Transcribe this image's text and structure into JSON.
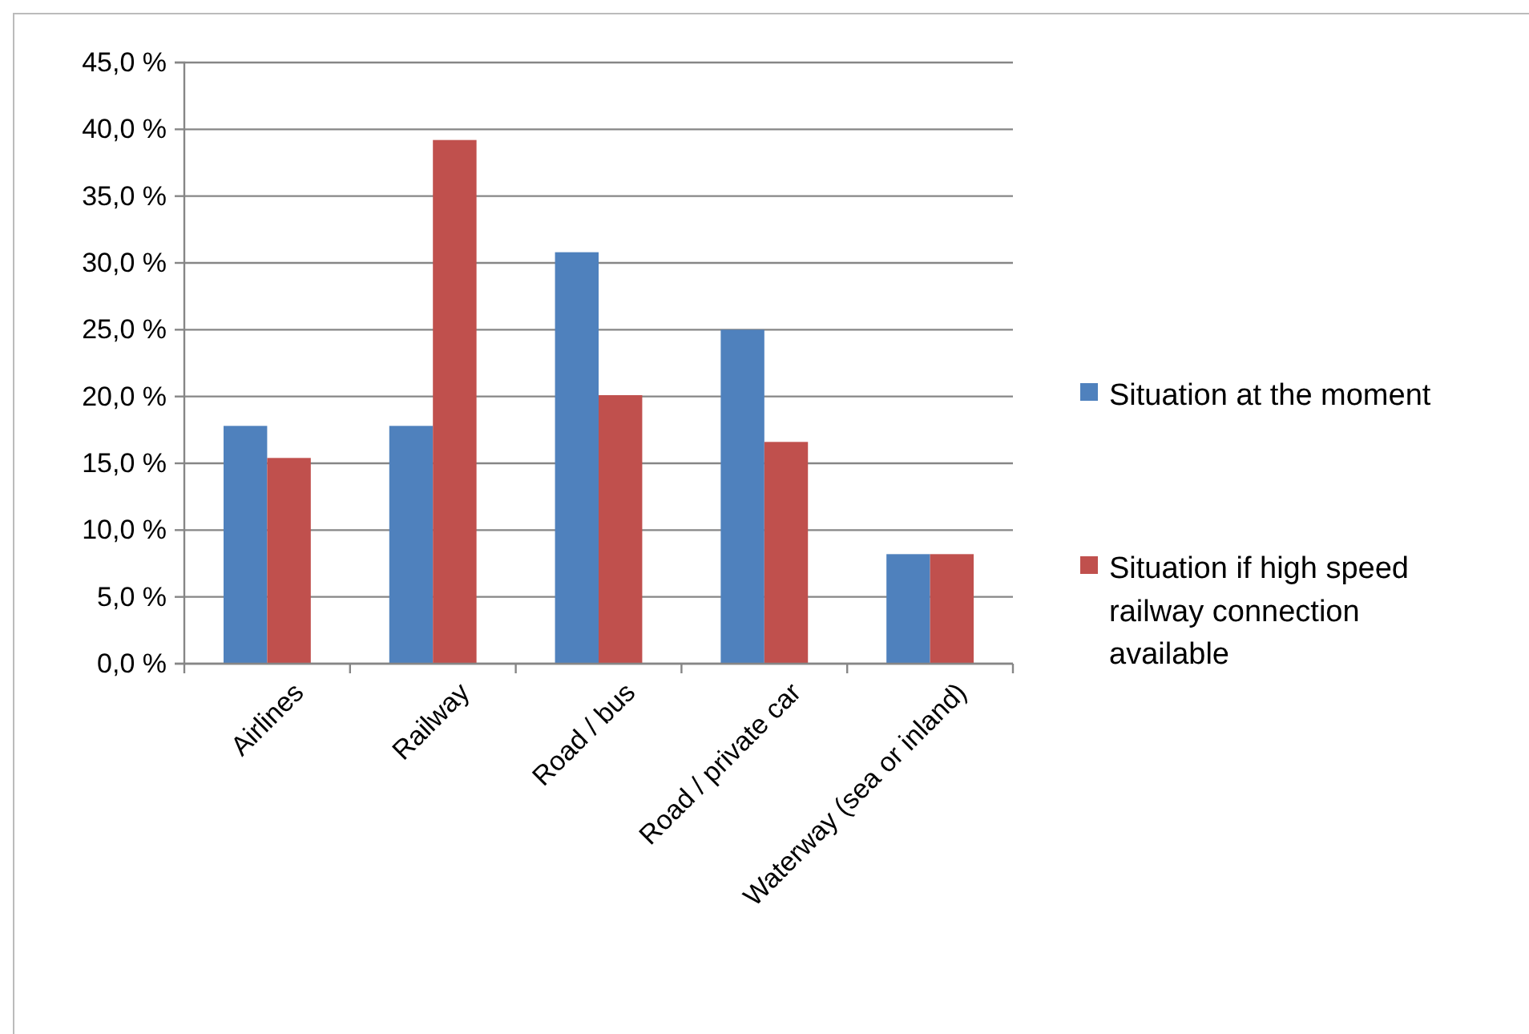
{
  "chart_data": {
    "type": "bar",
    "categories": [
      "Airlines",
      "Railway",
      "Road / bus",
      "Road / private car",
      "Waterway (sea or inland)"
    ],
    "series": [
      {
        "name": "Situation at the moment",
        "color": "#4f81bd",
        "values": [
          17.8,
          17.8,
          30.8,
          25.0,
          8.2
        ]
      },
      {
        "name": "Situation if high speed railway connection available",
        "color": "#c0504d",
        "values": [
          15.4,
          39.2,
          20.1,
          16.6,
          8.2
        ]
      }
    ],
    "ylim": [
      0,
      45
    ],
    "yticks": [
      {
        "value": 0,
        "label": "0,0 %"
      },
      {
        "value": 5,
        "label": "5,0 %"
      },
      {
        "value": 10,
        "label": "10,0 %"
      },
      {
        "value": 15,
        "label": "15,0 %"
      },
      {
        "value": 20,
        "label": "20,0 %"
      },
      {
        "value": 25,
        "label": "25,0 %"
      },
      {
        "value": 30,
        "label": "30,0 %"
      },
      {
        "value": 35,
        "label": "35,0 %"
      },
      {
        "value": 40,
        "label": "40,0 %"
      },
      {
        "value": 45,
        "label": "45,0 %"
      }
    ],
    "grid": "y",
    "legend": "right"
  }
}
